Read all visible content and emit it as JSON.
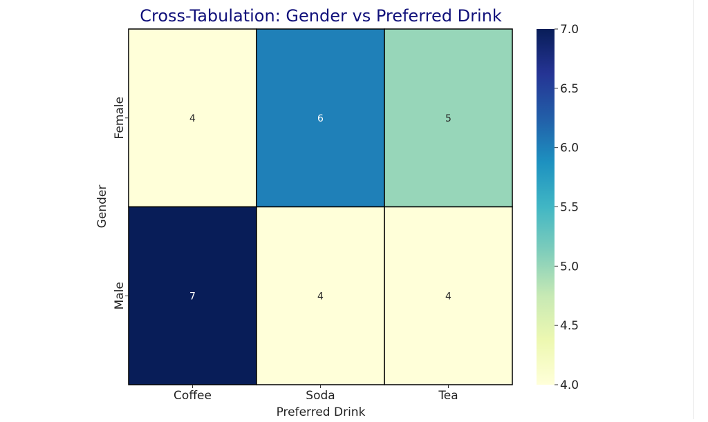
{
  "chart_data": {
    "type": "heatmap",
    "title": "Cross-Tabulation: Gender vs Preferred Drink",
    "xlabel": "Preferred Drink",
    "ylabel": "Gender",
    "x_categories": [
      "Coffee",
      "Soda",
      "Tea"
    ],
    "y_categories": [
      "Female",
      "Male"
    ],
    "values": [
      [
        4,
        6,
        5
      ],
      [
        7,
        4,
        4
      ]
    ],
    "annotations": true,
    "colormap": "YlGnBu",
    "colorbar": {
      "range": [
        4.0,
        7.0
      ],
      "ticks": [
        "4.0",
        "4.5",
        "5.0",
        "5.5",
        "6.0",
        "6.5",
        "7.0"
      ]
    },
    "colors": {
      "title": "#10107a",
      "cell_border": "#000000"
    }
  }
}
